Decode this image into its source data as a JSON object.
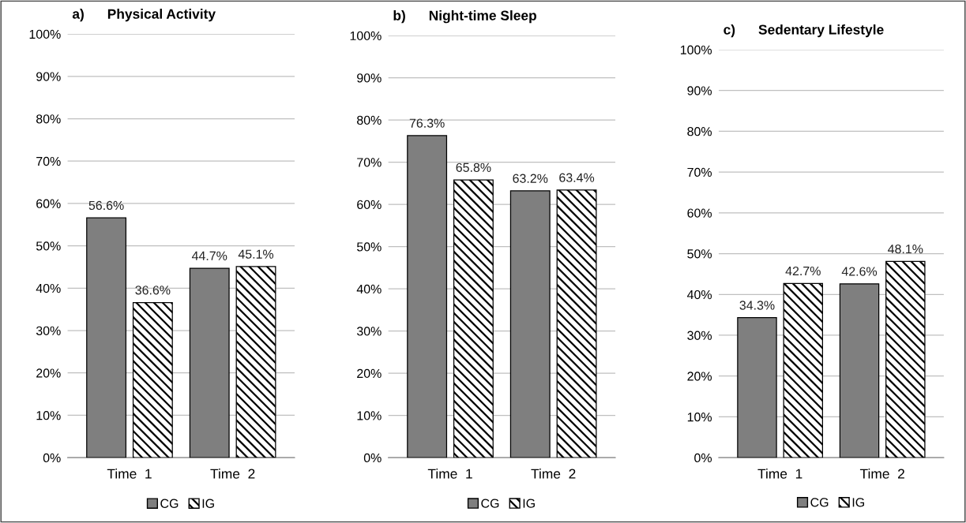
{
  "chart_data": [
    {
      "type": "bar",
      "title": "a)      Physical Activity",
      "categories": [
        "Time  1",
        "Time  2"
      ],
      "series": [
        {
          "name": "CG",
          "color": "#7f7f7f",
          "values": [
            56.6,
            44.7
          ],
          "value_labels": [
            "56.6%",
            "44.7%"
          ]
        },
        {
          "name": "IG",
          "color": "#000000",
          "values": [
            36.6,
            45.1
          ],
          "value_labels": [
            "36.6%",
            "45.1%"
          ]
        }
      ],
      "ylim": [
        0,
        100
      ],
      "yticks": [
        {
          "value": 0,
          "label": "0%"
        },
        {
          "value": 10,
          "label": "10%"
        },
        {
          "value": 20,
          "label": "20%"
        },
        {
          "value": 30,
          "label": "30%"
        },
        {
          "value": 40,
          "label": "40%"
        },
        {
          "value": 50,
          "label": "50%"
        },
        {
          "value": 60,
          "label": "60%"
        },
        {
          "value": 70,
          "label": "70%"
        },
        {
          "value": 80,
          "label": "80%"
        },
        {
          "value": 90,
          "label": "90%"
        },
        {
          "value": 100,
          "label": "100%"
        }
      ],
      "grid": "y",
      "legend": "bottom"
    },
    {
      "type": "bar",
      "title": "b)      Night-time Sleep",
      "categories": [
        "Time  1",
        "Time  2"
      ],
      "series": [
        {
          "name": "CG",
          "color": "#7f7f7f",
          "values": [
            76.3,
            63.2
          ],
          "value_labels": [
            "76.3%",
            "63.2%"
          ]
        },
        {
          "name": "IG",
          "color": "#000000",
          "values": [
            65.8,
            63.4
          ],
          "value_labels": [
            "65.8%",
            "63.4%"
          ]
        }
      ],
      "ylim": [
        0,
        100
      ],
      "yticks": [
        {
          "value": 0,
          "label": "0%"
        },
        {
          "value": 10,
          "label": "10%"
        },
        {
          "value": 20,
          "label": "20%"
        },
        {
          "value": 30,
          "label": "30%"
        },
        {
          "value": 40,
          "label": "40%"
        },
        {
          "value": 50,
          "label": "50%"
        },
        {
          "value": 60,
          "label": "60%"
        },
        {
          "value": 70,
          "label": "70%"
        },
        {
          "value": 80,
          "label": "80%"
        },
        {
          "value": 90,
          "label": "90%"
        },
        {
          "value": 100,
          "label": "100%"
        }
      ],
      "grid": "y",
      "legend": "bottom"
    },
    {
      "type": "bar",
      "title": "c)      Sedentary Lifestyle",
      "categories": [
        "Time  1",
        "Time  2"
      ],
      "series": [
        {
          "name": "CG",
          "color": "#7f7f7f",
          "values": [
            34.3,
            42.6
          ],
          "value_labels": [
            "34.3%",
            "42.6%"
          ]
        },
        {
          "name": "IG",
          "color": "#000000",
          "values": [
            42.7,
            48.1
          ],
          "value_labels": [
            "42.7%",
            "48.1%"
          ]
        }
      ],
      "ylim": [
        0,
        100
      ],
      "yticks": [
        {
          "value": 0,
          "label": "0%"
        },
        {
          "value": 10,
          "label": "10%"
        },
        {
          "value": 20,
          "label": "20%"
        },
        {
          "value": 30,
          "label": "30%"
        },
        {
          "value": 40,
          "label": "40%"
        },
        {
          "value": 50,
          "label": "50%"
        },
        {
          "value": 60,
          "label": "60%"
        },
        {
          "value": 70,
          "label": "70%"
        },
        {
          "value": 80,
          "label": "80%"
        },
        {
          "value": 90,
          "label": "90%"
        },
        {
          "value": 100,
          "label": "100%"
        }
      ],
      "grid": "y",
      "legend": "bottom"
    }
  ]
}
